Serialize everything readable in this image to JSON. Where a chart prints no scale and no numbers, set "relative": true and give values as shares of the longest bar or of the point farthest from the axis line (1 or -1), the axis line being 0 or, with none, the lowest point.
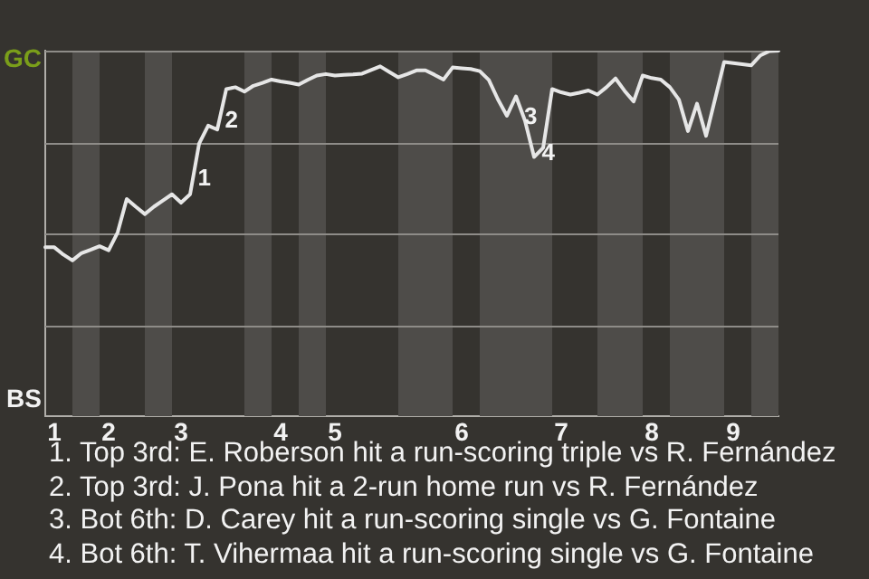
{
  "chart_data": {
    "type": "line",
    "relative": true,
    "grid": "y",
    "categories": [
      null,
      "1",
      null,
      null,
      null,
      null,
      null,
      "2",
      null,
      null,
      null,
      null,
      null,
      null,
      null,
      "3",
      null,
      null,
      null,
      null,
      null,
      null,
      null,
      null,
      null,
      null,
      "4",
      null,
      null,
      null,
      null,
      null,
      "5",
      null,
      null,
      null,
      null,
      null,
      null,
      null,
      null,
      null,
      null,
      null,
      null,
      null,
      "6",
      null,
      null,
      null,
      null,
      null,
      null,
      null,
      null,
      null,
      null,
      "7",
      null,
      null,
      null,
      null,
      null,
      null,
      null,
      null,
      null,
      "8",
      null,
      null,
      null,
      null,
      null,
      null,
      null,
      null,
      "9",
      null,
      null,
      null,
      null,
      null
    ],
    "series": [
      {
        "color": "#e6e6e6",
        "values": [
          0.462,
          0.462,
          0.442,
          0.426,
          0.446,
          0.455,
          0.465,
          0.454,
          0.503,
          0.594,
          0.573,
          0.553,
          0.573,
          0.59,
          0.607,
          0.584,
          0.607,
          0.746,
          0.795,
          0.784,
          0.895,
          0.9,
          0.888,
          0.904,
          0.912,
          0.921,
          0.916,
          0.912,
          0.907,
          0.92,
          0.932,
          0.936,
          0.932,
          0.934,
          0.935,
          0.937,
          0.947,
          0.957,
          0.942,
          0.927,
          0.936,
          0.946,
          0.946,
          0.934,
          0.921,
          0.954,
          0.952,
          0.95,
          0.944,
          0.92,
          0.867,
          0.822,
          0.875,
          0.808,
          0.709,
          0.734,
          0.895,
          0.886,
          0.88,
          0.885,
          0.891,
          0.88,
          0.9,
          0.924,
          0.89,
          0.861,
          0.932,
          0.925,
          0.921,
          0.9,
          0.866,
          0.78,
          0.855,
          0.767,
          0.868,
          0.969,
          0.966,
          0.963,
          0.96,
          0.987,
          0.999,
          1
        ]
      }
    ],
    "annotations": [
      "GC",
      "BS",
      "1",
      "2",
      "3",
      "4",
      "1. Top 3rd: E. Roberson hit a run-scoring triple vs R. Fernández",
      "2. Top 3rd: J. Pona hit a 2-run home run vs R. Fernández",
      "3. Bot 6th: D. Carey hit a run-scoring single vs G. Fontaine",
      "4. Bot 6th: T. Vihermaa hit a run-scoring single vs G. Fontaine"
    ]
  }
}
